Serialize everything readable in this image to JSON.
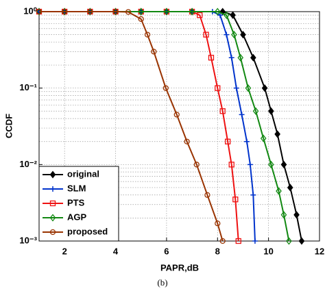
{
  "chart_data": {
    "type": "line",
    "xlabel": "PAPR,dB",
    "ylabel": "CCDF",
    "xlim": [
      1,
      12
    ],
    "xticks": [
      2,
      4,
      6,
      8,
      10,
      12
    ],
    "ylim": [
      0.001,
      1
    ],
    "log_y": true,
    "yticks": [
      {
        "value": 1,
        "label": "10⁰"
      },
      {
        "value": 0.1,
        "label": "10⁻¹"
      },
      {
        "value": 0.01,
        "label": "10⁻²"
      },
      {
        "value": 0.001,
        "label": "10⁻³"
      }
    ],
    "grid": true,
    "minor_grid": true,
    "legend": "lower left",
    "series": [
      {
        "name": "original",
        "color": "#000000",
        "marker": "filled-diamond",
        "x": [
          1,
          2,
          3,
          4,
          5,
          6,
          7,
          8.2,
          8.6,
          9.0,
          9.4,
          9.85,
          10.1,
          10.35,
          10.6,
          10.85,
          11.1,
          11.3
        ],
        "values": [
          1,
          1,
          1,
          1,
          1,
          1,
          1,
          1,
          0.9,
          0.5,
          0.25,
          0.1,
          0.05,
          0.025,
          0.01,
          0.005,
          0.0022,
          0.001
        ]
      },
      {
        "name": "SLM",
        "color": "#0033cc",
        "marker": "plus",
        "x": [
          1,
          2,
          3,
          4,
          5,
          6,
          7,
          7.8,
          8.1,
          8.35,
          8.55,
          8.74,
          8.95,
          9.15,
          9.28,
          9.4,
          9.47
        ],
        "values": [
          1,
          1,
          1,
          1,
          1,
          1,
          1,
          1,
          0.9,
          0.5,
          0.25,
          0.1,
          0.045,
          0.02,
          0.01,
          0.004,
          0.001
        ]
      },
      {
        "name": "PTS",
        "color": "#ee1111",
        "marker": "square",
        "x": [
          1,
          2,
          3,
          4,
          5,
          6,
          7,
          7.3,
          7.55,
          7.75,
          8.0,
          8.2,
          8.4,
          8.55,
          8.7,
          8.82
        ],
        "values": [
          1,
          1,
          1,
          1,
          1,
          1,
          1,
          0.9,
          0.5,
          0.25,
          0.1,
          0.05,
          0.02,
          0.01,
          0.0035,
          0.001
        ]
      },
      {
        "name": "AGP",
        "color": "#118811",
        "marker": "diamond",
        "x": [
          1,
          2,
          3,
          4,
          5,
          6,
          7,
          8,
          8.35,
          8.65,
          8.9,
          9.2,
          9.5,
          9.8,
          10.1,
          10.4,
          10.6,
          10.8
        ],
        "values": [
          1,
          1,
          1,
          1,
          1,
          1,
          1,
          1,
          0.9,
          0.5,
          0.25,
          0.1,
          0.05,
          0.022,
          0.01,
          0.0045,
          0.0022,
          0.001
        ]
      },
      {
        "name": "proposed",
        "color": "#993300",
        "marker": "circle",
        "x": [
          1,
          2,
          3,
          4,
          4.5,
          5,
          5.25,
          5.5,
          5.97,
          6.4,
          6.8,
          7.18,
          7.6,
          8.0,
          8.2
        ],
        "values": [
          1,
          1,
          1,
          1,
          0.99,
          0.8,
          0.5,
          0.3,
          0.1,
          0.045,
          0.02,
          0.01,
          0.004,
          0.0017,
          0.001
        ]
      }
    ]
  },
  "caption": "(b)"
}
